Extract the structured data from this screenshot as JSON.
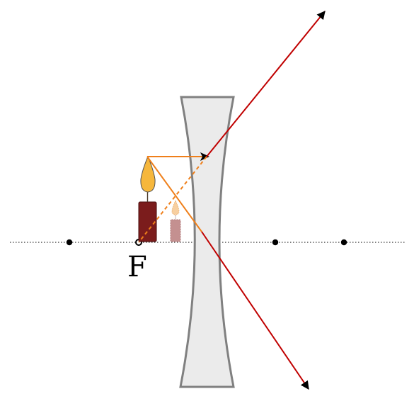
{
  "diagram": {
    "focal_label": "F",
    "colors": {
      "axis": "#333333",
      "lens_fill": "#ebebeb",
      "lens_stroke": "#808080",
      "incident_ray": "#ef7f1a",
      "refracted_ray": "#c00000",
      "virtual_ray": "#ef7f1a",
      "candle_body": "#7b1c1c",
      "flame": "#f6b73c",
      "image_candle": "#c49090",
      "image_flame": "#f7cfa0",
      "point": "#000000"
    }
  }
}
